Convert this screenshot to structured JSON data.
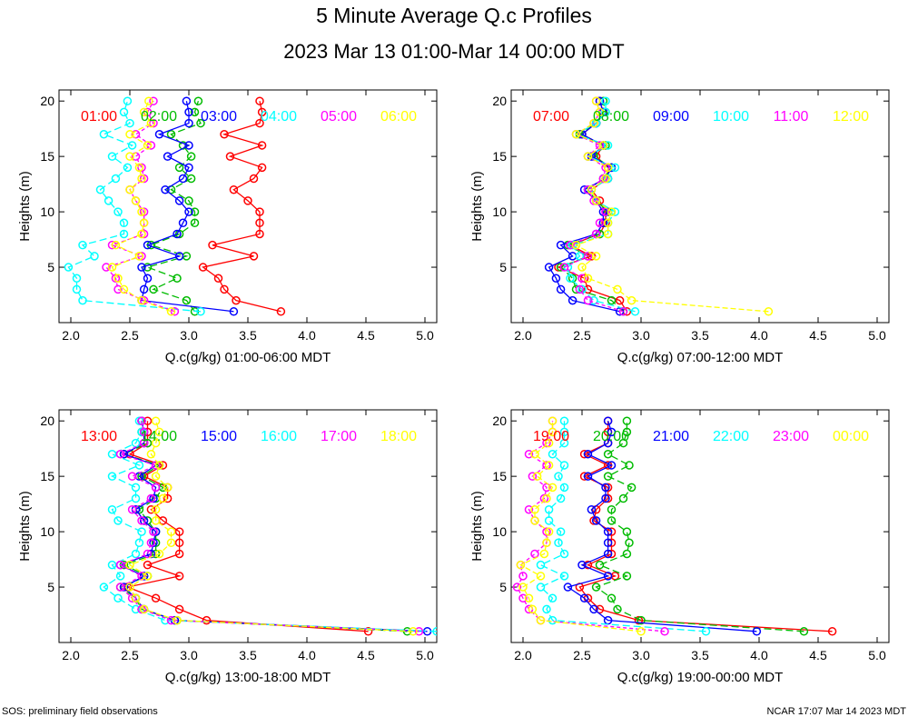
{
  "title": "5 Minute Average Q.c Profiles",
  "subtitle": "2023 Mar 13 01:00-Mar 14 00:00 MDT",
  "footer_left": "SOS: preliminary field observations",
  "footer_right": "NCAR 17:07 Mar 14 2023 MDT",
  "colors": [
    "#ff0000",
    "#00bb00",
    "#0000ff",
    "#00ffff",
    "#ff00ff",
    "#ffff00"
  ],
  "chart_data": [
    {
      "type": "scatter",
      "xlabel": "Q.c(g/kg) 01:00-06:00 MDT",
      "ylabel": "Heights (m)",
      "xlim": [
        1.9,
        5.1
      ],
      "ylim": [
        0,
        21
      ],
      "xticks": [
        "2.0",
        "2.5",
        "3.0",
        "3.5",
        "4.0",
        "4.5",
        "5.0"
      ],
      "yticks": [
        "5",
        "10",
        "15",
        "20"
      ],
      "heights": [
        1,
        2,
        3,
        4,
        5,
        6,
        7,
        8,
        9,
        10,
        11,
        12,
        13,
        14,
        15,
        16,
        17,
        18,
        19,
        20
      ],
      "series": [
        {
          "name": "01:00",
          "values": [
            3.78,
            3.4,
            3.3,
            3.25,
            3.12,
            3.55,
            3.2,
            3.6,
            3.6,
            3.6,
            3.5,
            3.38,
            3.55,
            3.62,
            3.35,
            3.62,
            3.3,
            3.6,
            3.62,
            3.6
          ]
        },
        {
          "name": "02:00",
          "values": [
            3.05,
            2.98,
            2.7,
            2.9,
            2.65,
            2.98,
            2.68,
            2.92,
            3.05,
            3.05,
            3.0,
            2.85,
            3.02,
            2.92,
            3.02,
            2.95,
            2.85,
            3.1,
            3.05,
            3.08
          ]
        },
        {
          "name": "03:00",
          "values": [
            3.38,
            2.6,
            2.62,
            2.65,
            2.6,
            2.92,
            2.65,
            2.9,
            2.95,
            3.0,
            2.92,
            2.8,
            2.95,
            3.0,
            2.82,
            3.0,
            2.75,
            3.0,
            3.0,
            2.98
          ]
        },
        {
          "name": "04:00",
          "values": [
            3.1,
            2.1,
            2.05,
            2.05,
            1.98,
            2.2,
            2.1,
            2.45,
            2.45,
            2.4,
            2.32,
            2.25,
            2.38,
            2.48,
            2.35,
            2.52,
            2.28,
            2.5,
            2.45,
            2.48
          ]
        },
        {
          "name": "05:00",
          "values": [
            2.88,
            2.62,
            2.4,
            2.38,
            2.3,
            2.6,
            2.35,
            2.62,
            2.62,
            2.62,
            2.55,
            2.5,
            2.62,
            2.6,
            2.55,
            2.68,
            2.55,
            2.7,
            2.65,
            2.7
          ]
        },
        {
          "name": "06:00",
          "values": [
            2.85,
            2.6,
            2.45,
            2.4,
            2.35,
            2.58,
            2.38,
            2.6,
            2.62,
            2.6,
            2.55,
            2.5,
            2.6,
            2.58,
            2.5,
            2.65,
            2.5,
            2.68,
            2.62,
            2.66
          ]
        }
      ]
    },
    {
      "type": "scatter",
      "xlabel": "Q.c(g/kg) 07:00-12:00 MDT",
      "ylabel": "Heights (m)",
      "xlim": [
        1.9,
        5.1
      ],
      "ylim": [
        0,
        21
      ],
      "xticks": [
        "2.0",
        "2.5",
        "3.0",
        "3.5",
        "4.0",
        "4.5",
        "5.0"
      ],
      "yticks": [
        "5",
        "10",
        "15",
        "20"
      ],
      "heights": [
        1,
        2,
        3,
        4,
        5,
        6,
        7,
        8,
        9,
        10,
        11,
        12,
        13,
        14,
        15,
        16,
        17,
        18,
        19,
        20
      ],
      "series": [
        {
          "name": "07:00",
          "values": [
            2.88,
            2.82,
            2.55,
            2.52,
            2.3,
            2.58,
            2.4,
            2.65,
            2.7,
            2.7,
            2.65,
            2.58,
            2.72,
            2.72,
            2.62,
            2.68,
            2.5,
            2.62,
            2.68,
            2.65
          ]
        },
        {
          "name": "08:00",
          "values": [
            2.85,
            2.75,
            2.45,
            2.42,
            2.32,
            2.55,
            2.38,
            2.65,
            2.68,
            2.72,
            2.62,
            2.55,
            2.68,
            2.75,
            2.6,
            2.7,
            2.48,
            2.62,
            2.7,
            2.68
          ]
        },
        {
          "name": "09:00",
          "values": [
            2.82,
            2.42,
            2.32,
            2.28,
            2.22,
            2.42,
            2.32,
            2.62,
            2.68,
            2.68,
            2.62,
            2.52,
            2.7,
            2.75,
            2.58,
            2.68,
            2.5,
            2.62,
            2.68,
            2.65
          ]
        },
        {
          "name": "10:00",
          "values": [
            2.95,
            2.6,
            2.5,
            2.4,
            2.38,
            2.48,
            2.42,
            2.72,
            2.72,
            2.78,
            2.62,
            2.58,
            2.72,
            2.78,
            2.55,
            2.72,
            2.45,
            2.62,
            2.7,
            2.7
          ]
        },
        {
          "name": "11:00",
          "values": [
            2.85,
            2.55,
            2.48,
            2.5,
            2.35,
            2.55,
            2.4,
            2.62,
            2.65,
            2.7,
            2.6,
            2.55,
            2.68,
            2.7,
            2.55,
            2.65,
            2.45,
            2.6,
            2.65,
            2.62
          ]
        },
        {
          "name": "12:00",
          "values": [
            4.08,
            2.92,
            2.8,
            2.55,
            2.5,
            2.62,
            2.45,
            2.72,
            2.72,
            2.75,
            2.62,
            2.58,
            2.7,
            2.72,
            2.55,
            2.68,
            2.45,
            2.6,
            2.65,
            2.62
          ]
        }
      ]
    },
    {
      "type": "scatter",
      "xlabel": "Q.c(g/kg) 13:00-18:00 MDT",
      "ylabel": "Heights (m)",
      "xlim": [
        1.9,
        5.1
      ],
      "ylim": [
        0,
        21
      ],
      "xticks": [
        "2.0",
        "2.5",
        "3.0",
        "3.5",
        "4.0",
        "4.5",
        "5.0"
      ],
      "yticks": [
        "5",
        "10",
        "15",
        "20"
      ],
      "heights": [
        1,
        2,
        3,
        4,
        5,
        6,
        7,
        8,
        9,
        10,
        11,
        12,
        13,
        14,
        15,
        16,
        17,
        18,
        19,
        20
      ],
      "series": [
        {
          "name": "13:00",
          "values": [
            4.52,
            3.15,
            2.92,
            2.72,
            2.48,
            2.92,
            2.65,
            2.92,
            2.92,
            2.92,
            2.78,
            2.68,
            2.82,
            2.82,
            2.62,
            2.78,
            2.5,
            2.65,
            2.65,
            2.65
          ]
        },
        {
          "name": "14:00",
          "values": [
            4.85,
            2.9,
            2.6,
            2.55,
            2.42,
            2.65,
            2.45,
            2.72,
            2.72,
            2.72,
            2.65,
            2.58,
            2.72,
            2.78,
            2.6,
            2.75,
            2.45,
            2.65,
            2.6,
            2.6
          ]
        },
        {
          "name": "15:00",
          "values": [
            5.02,
            2.88,
            2.62,
            2.55,
            2.45,
            2.62,
            2.42,
            2.68,
            2.7,
            2.72,
            2.62,
            2.55,
            2.7,
            2.72,
            2.58,
            2.72,
            2.45,
            2.62,
            2.62,
            2.6
          ]
        },
        {
          "name": "16:00",
          "values": [
            5.1,
            2.8,
            2.55,
            2.4,
            2.28,
            2.42,
            2.35,
            2.55,
            2.58,
            2.6,
            2.4,
            2.35,
            2.55,
            2.55,
            2.35,
            2.58,
            2.35,
            2.55,
            2.6,
            2.58
          ]
        },
        {
          "name": "17:00",
          "values": [
            4.95,
            2.85,
            2.6,
            2.52,
            2.42,
            2.6,
            2.42,
            2.65,
            2.68,
            2.7,
            2.6,
            2.52,
            2.68,
            2.72,
            2.52,
            2.72,
            2.42,
            2.62,
            2.62,
            2.6
          ]
        },
        {
          "name": "18:00",
          "values": [
            4.9,
            2.9,
            2.62,
            2.55,
            2.5,
            2.65,
            2.5,
            2.75,
            2.85,
            2.85,
            2.72,
            2.72,
            2.78,
            2.82,
            2.72,
            2.75,
            2.68,
            2.72,
            2.75,
            2.72
          ]
        }
      ]
    },
    {
      "type": "scatter",
      "xlabel": "Q.c(g/kg) 19:00-00:00 MDT",
      "ylabel": "Heights (m)",
      "xlim": [
        1.9,
        5.1
      ],
      "ylim": [
        0,
        21
      ],
      "xticks": [
        "2.0",
        "2.5",
        "3.0",
        "3.5",
        "4.0",
        "4.5",
        "5.0"
      ],
      "yticks": [
        "5",
        "10",
        "15",
        "20"
      ],
      "heights": [
        1,
        2,
        3,
        4,
        5,
        6,
        7,
        8,
        9,
        10,
        11,
        12,
        13,
        14,
        15,
        16,
        17,
        18,
        19,
        20
      ],
      "series": [
        {
          "name": "19:00",
          "values": [
            4.62,
            2.98,
            2.65,
            2.55,
            2.48,
            2.78,
            2.55,
            2.75,
            2.75,
            2.75,
            2.6,
            2.62,
            2.72,
            2.72,
            2.52,
            2.72,
            2.52,
            2.72,
            2.72,
            2.72
          ]
        },
        {
          "name": "20:00",
          "values": [
            4.38,
            3.0,
            2.8,
            2.75,
            2.62,
            2.88,
            2.65,
            2.88,
            2.9,
            2.88,
            2.75,
            2.75,
            2.85,
            2.92,
            2.72,
            2.9,
            2.72,
            2.85,
            2.88,
            2.88
          ]
        },
        {
          "name": "21:00",
          "values": [
            3.98,
            2.72,
            2.6,
            2.52,
            2.38,
            2.72,
            2.5,
            2.72,
            2.72,
            2.72,
            2.62,
            2.58,
            2.7,
            2.7,
            2.55,
            2.75,
            2.55,
            2.72,
            2.75,
            2.72
          ]
        },
        {
          "name": "22:00",
          "values": [
            3.55,
            2.25,
            2.2,
            2.25,
            2.15,
            2.35,
            2.15,
            2.35,
            2.3,
            2.32,
            2.22,
            2.22,
            2.32,
            2.35,
            2.3,
            2.35,
            2.25,
            2.35,
            2.35,
            2.35
          ]
        },
        {
          "name": "23:00",
          "values": [
            3.2,
            2.15,
            2.05,
            2.0,
            1.95,
            2.0,
            1.98,
            2.1,
            2.2,
            2.2,
            2.1,
            2.05,
            2.18,
            2.2,
            2.08,
            2.2,
            2.05,
            2.2,
            2.25,
            2.25
          ]
        },
        {
          "name": "00:00",
          "values": [
            3.0,
            2.15,
            2.08,
            2.05,
            2.0,
            2.15,
            1.98,
            2.18,
            2.2,
            2.22,
            2.1,
            2.1,
            2.2,
            2.25,
            2.12,
            2.22,
            2.1,
            2.22,
            2.25,
            2.25
          ]
        }
      ]
    }
  ]
}
